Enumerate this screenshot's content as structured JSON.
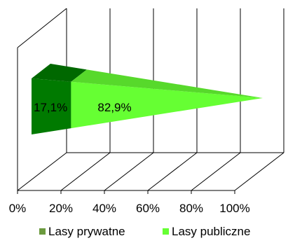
{
  "chart_data": {
    "type": "bar",
    "orientation": "horizontal",
    "stacked_percent": true,
    "style": "3d-pyramid",
    "categories": [
      ""
    ],
    "series": [
      {
        "name": "Lasy prywatne",
        "values": [
          17.1
        ],
        "color": "#007a00",
        "data_label": "17,1%"
      },
      {
        "name": "Lasy publiczne",
        "values": [
          82.9
        ],
        "color": "#66ff33",
        "data_label": "82,9%"
      }
    ],
    "x_ticks": [
      "0%",
      "20%",
      "40%",
      "60%",
      "80%",
      "100%"
    ],
    "xlim": [
      0,
      100
    ],
    "grid": true,
    "legend": "bottom",
    "title": "",
    "xlabel": "",
    "ylabel": ""
  }
}
